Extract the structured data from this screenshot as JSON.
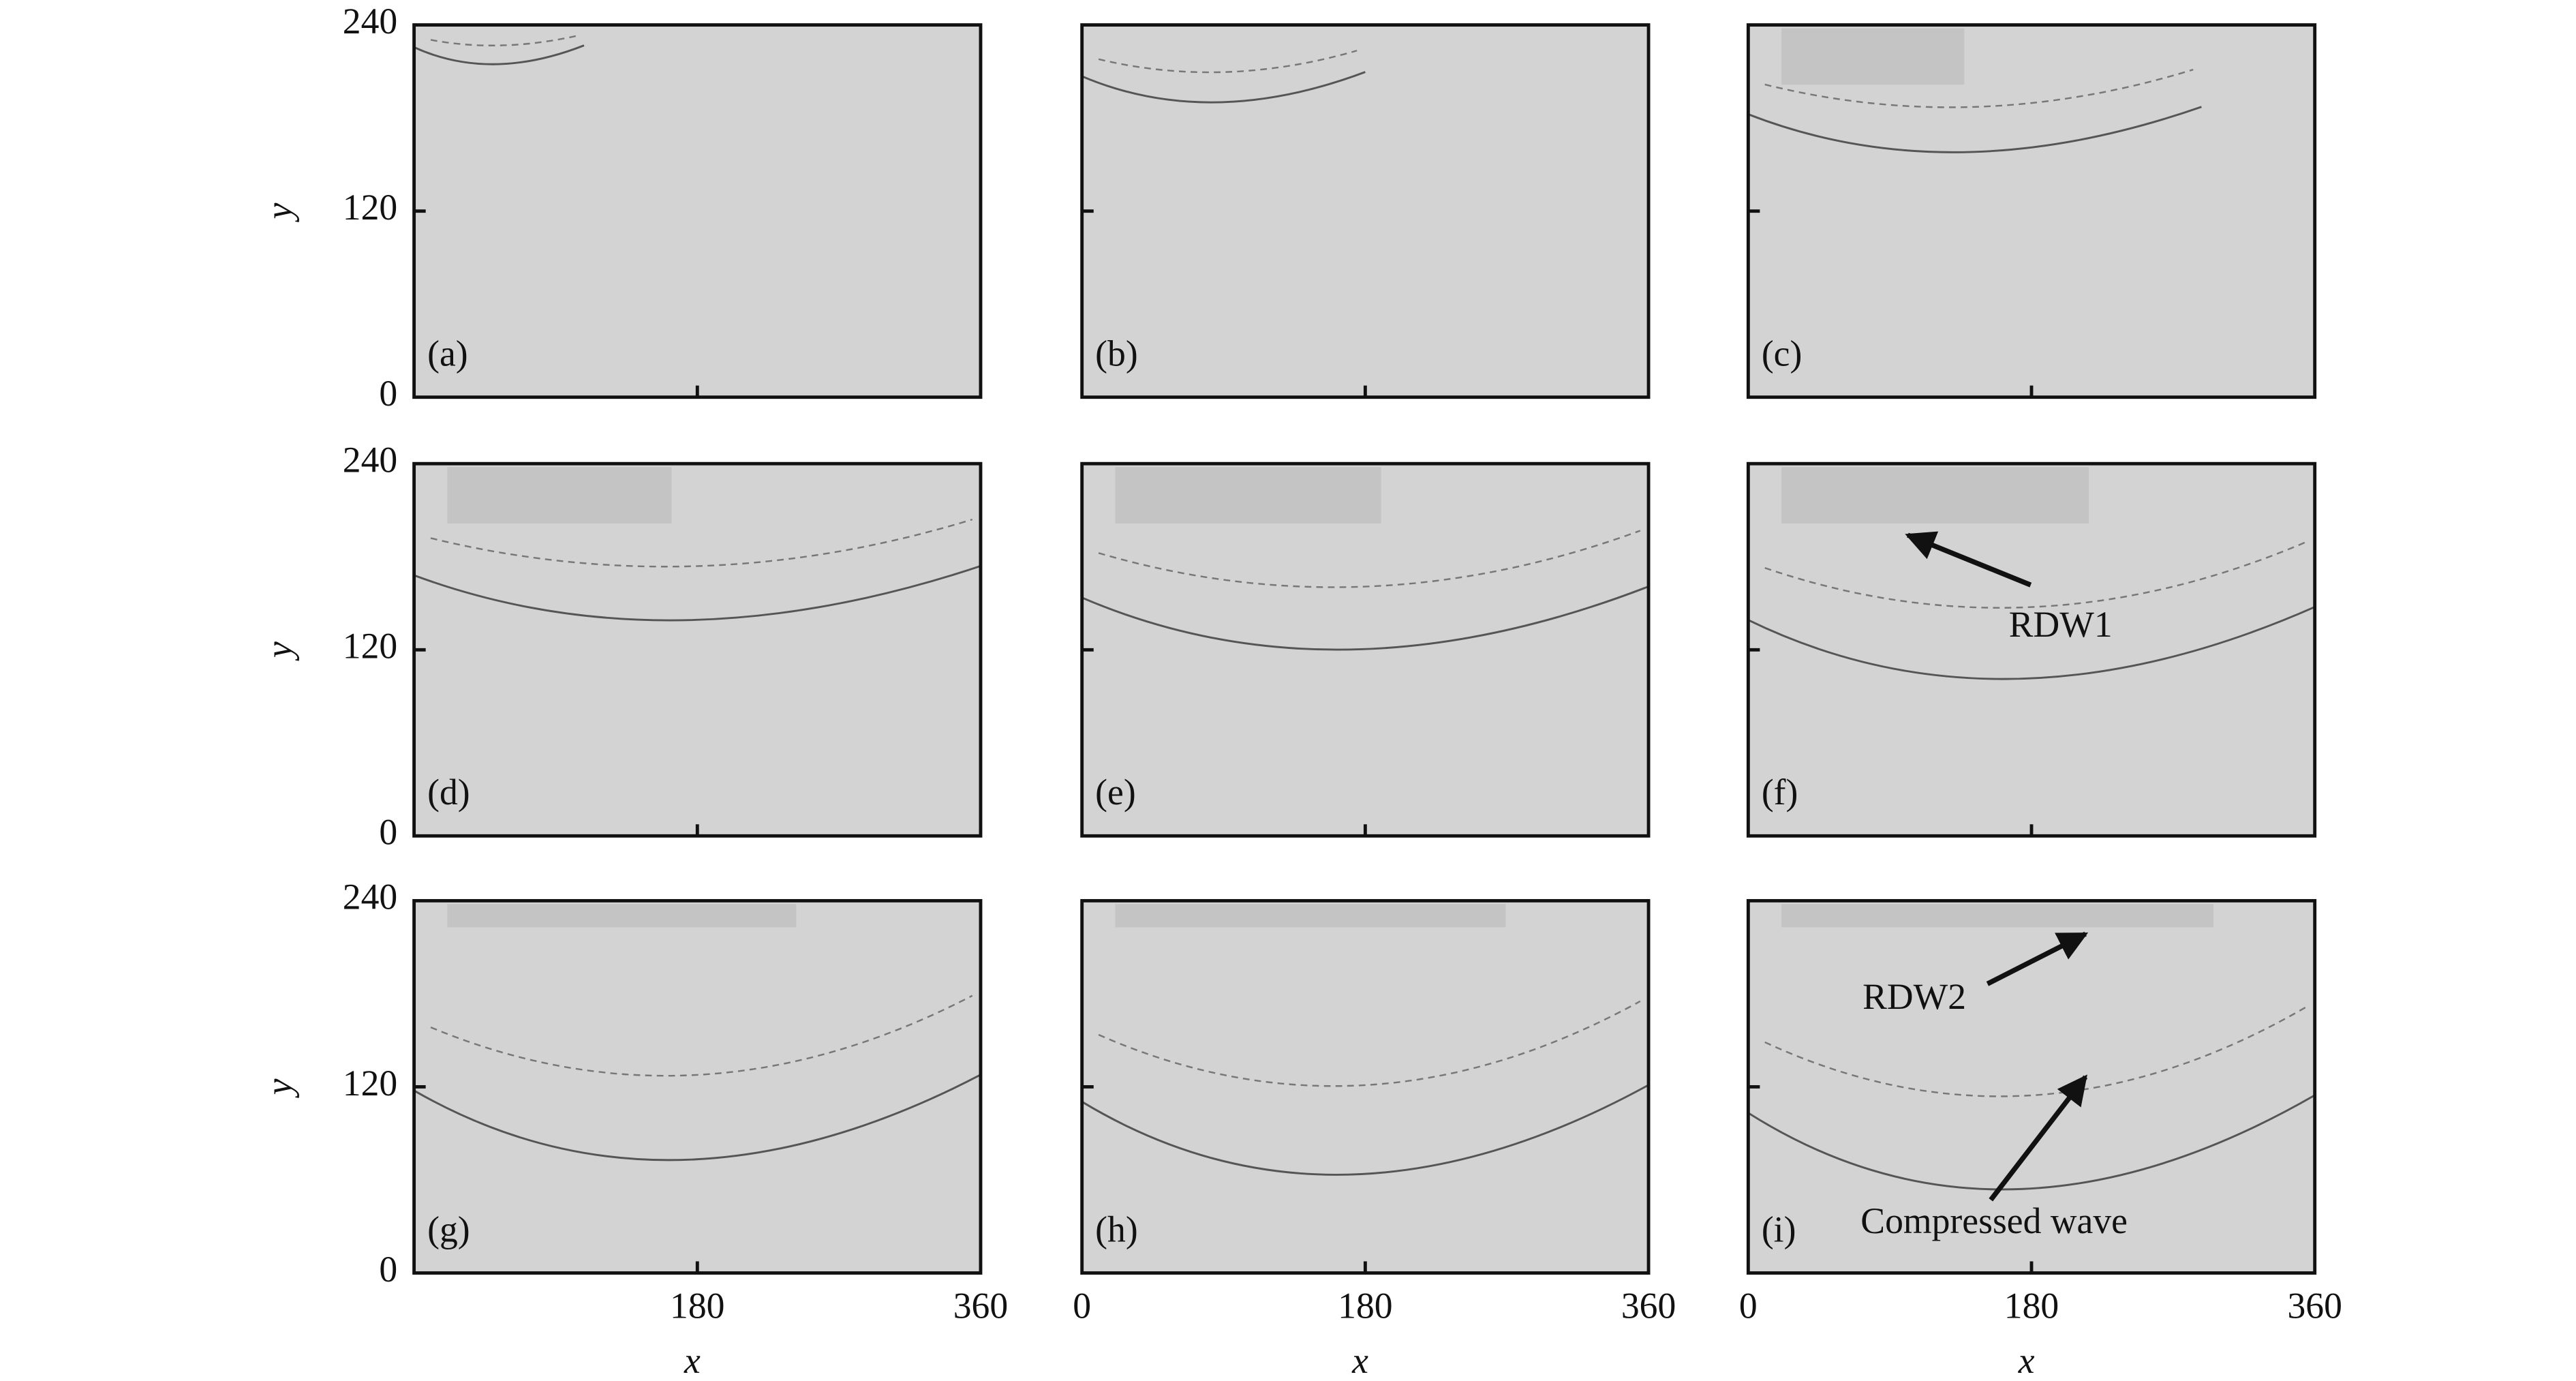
{
  "panels": [
    {
      "label": "(a)"
    },
    {
      "label": "(b)"
    },
    {
      "label": "(c)"
    },
    {
      "label": "(d)"
    },
    {
      "label": "(e)"
    },
    {
      "label": "(f)"
    },
    {
      "label": "(g)"
    },
    {
      "label": "(h)"
    },
    {
      "label": "(i)"
    }
  ],
  "y_axis": {
    "label": "y",
    "ticks": [
      "240",
      "120",
      "0"
    ]
  },
  "x_axis": {
    "label": "x",
    "ticks": [
      "0",
      "180",
      "360"
    ]
  },
  "annotations": [
    "RDW1",
    "RDW2",
    "Compressed wave"
  ]
}
